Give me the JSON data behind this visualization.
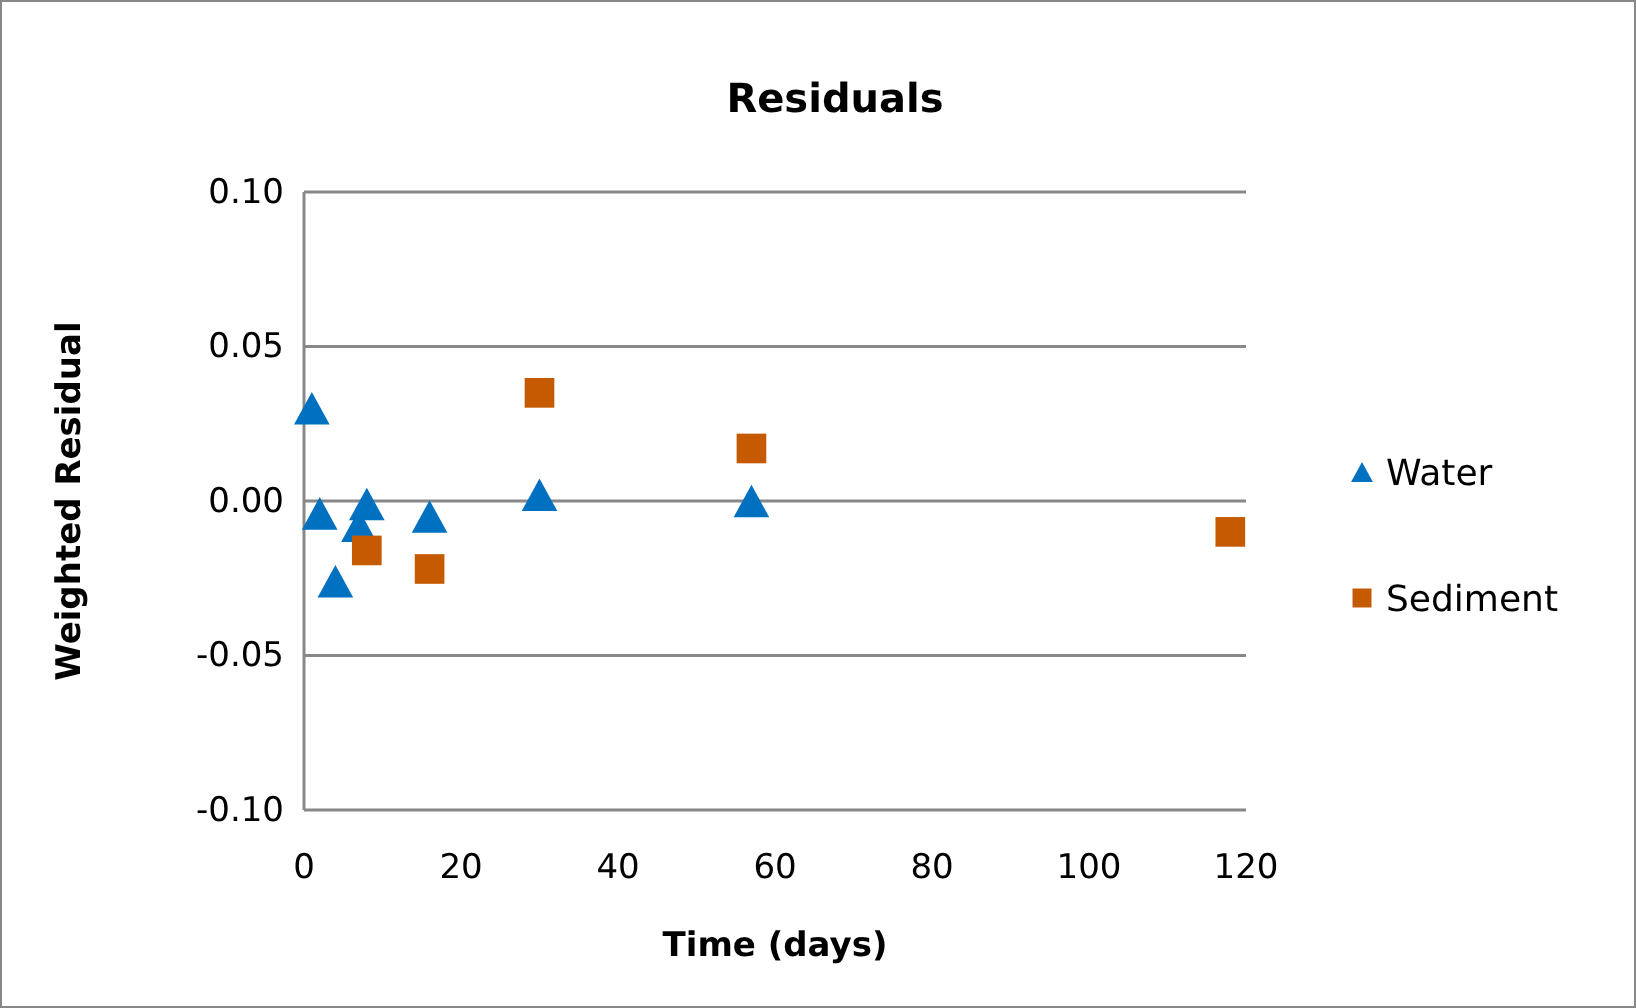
{
  "chart_data": {
    "type": "scatter",
    "title": "Residuals",
    "xlabel": "Time (days)",
    "ylabel": "Weighted Residual",
    "xlim": [
      0,
      120
    ],
    "xticks": [
      0,
      20,
      40,
      60,
      80,
      100,
      120
    ],
    "ylim": [
      -0.1,
      0.1
    ],
    "yticks": [
      {
        "value": -0.1,
        "label": "-0.10"
      },
      {
        "value": -0.05,
        "label": "-0.05"
      },
      {
        "value": 0,
        "label": "0.00"
      },
      {
        "value": 0.05,
        "label": "0.05"
      },
      {
        "value": 0.1,
        "label": "0.10"
      }
    ],
    "grid": "y",
    "legend": "right",
    "series": [
      {
        "name": "Water",
        "color": "#0070c0",
        "marker": "triangle",
        "x": [
          1,
          2,
          4,
          7,
          8,
          16,
          30,
          57
        ],
        "values": [
          0.03,
          -0.004,
          -0.026,
          -0.008,
          -0.001,
          -0.005,
          0.002,
          0.0
        ]
      },
      {
        "name": "Sediment",
        "color": "#c55a00",
        "marker": "square",
        "x": [
          8,
          16,
          30,
          57,
          118
        ],
        "values": [
          -0.016,
          -0.022,
          0.035,
          0.017,
          -0.01
        ]
      }
    ]
  }
}
